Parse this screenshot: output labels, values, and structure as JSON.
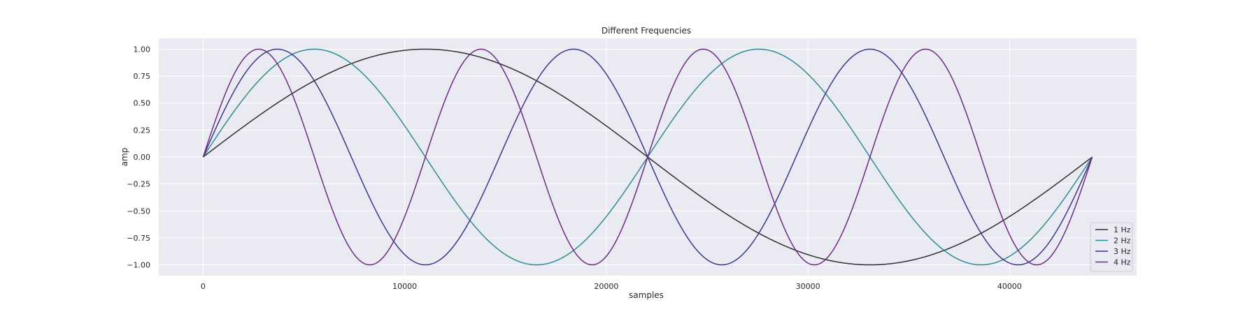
{
  "chart_data": {
    "type": "line",
    "title": "Different Frequencies",
    "xlabel": "samples",
    "ylabel": "amp",
    "xlim": [
      -2200,
      46300
    ],
    "ylim": [
      -1.1,
      1.1
    ],
    "x_ticks": [
      0,
      10000,
      20000,
      30000,
      40000
    ],
    "x_tick_labels": [
      "0",
      "10000",
      "20000",
      "30000",
      "40000"
    ],
    "y_ticks": [
      1.0,
      0.75,
      0.5,
      0.25,
      0.0,
      -0.25,
      -0.5,
      -0.75,
      -1.0
    ],
    "y_tick_labels": [
      "1.00",
      "0.75",
      "0.50",
      "0.25",
      "0.00",
      "−0.25",
      "−0.50",
      "−0.75",
      "−1.00"
    ],
    "grid": true,
    "legend_position": "lower-right",
    "x_range_samples": [
      0,
      44100
    ],
    "series": [
      {
        "name": "1 Hz",
        "frequency": 1,
        "color": "#2f2f2f"
      },
      {
        "name": "2 Hz",
        "frequency": 2,
        "color": "#2e8c93"
      },
      {
        "name": "3 Hz",
        "frequency": 3,
        "color": "#3f3589"
      },
      {
        "name": "4 Hz",
        "frequency": 4,
        "color": "#6a2d83"
      }
    ]
  }
}
